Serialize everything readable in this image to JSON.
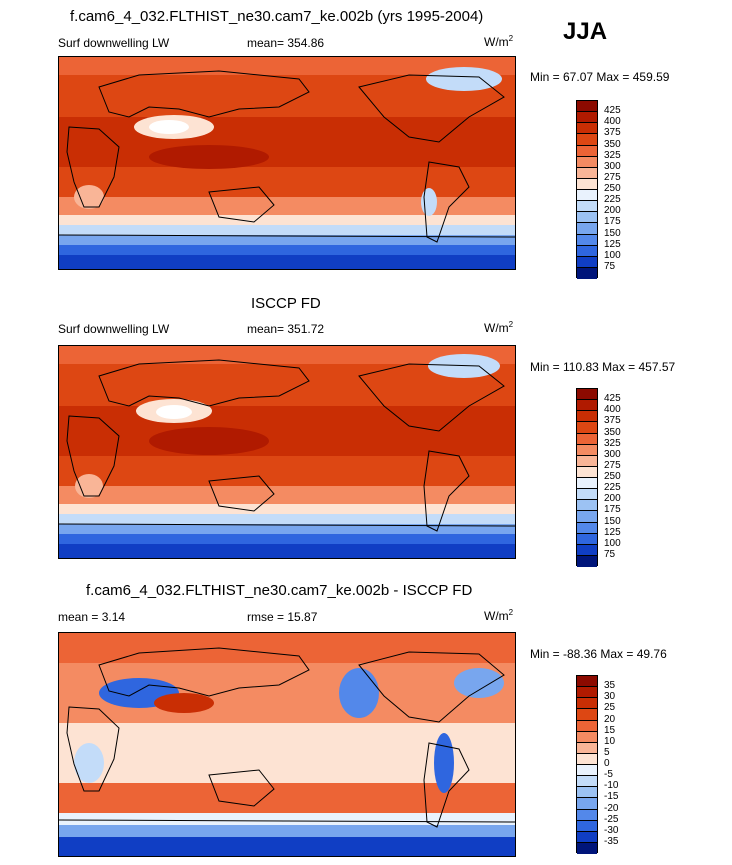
{
  "season": "JJA",
  "units_base": "W/m",
  "units_exp": "2",
  "panels": [
    {
      "title": "f.cam6_4_032.FLTHIST_ne30.cam7_ke.002b (yrs 1995-2004)",
      "variable": "Surf downwelling LW",
      "mean": "mean= 354.86",
      "minmax": "Min =  67.07 Max = 459.59"
    },
    {
      "title": "ISCCP FD",
      "variable": "Surf downwelling LW",
      "mean": "mean= 351.72",
      "minmax": "Min = 110.83 Max = 457.57"
    },
    {
      "title": "f.cam6_4_032.FLTHIST_ne30.cam7_ke.002b - ISCCP FD",
      "mean_left": "mean =   3.14",
      "rmse": "rmse =  15.87",
      "minmax": "Min = -88.36 Max =  49.76"
    }
  ],
  "colorbars": {
    "absolute": {
      "labels": [
        "425",
        "400",
        "375",
        "350",
        "325",
        "300",
        "275",
        "250",
        "225",
        "200",
        "175",
        "150",
        "125",
        "100",
        "75"
      ],
      "colors": [
        "#8c0a00",
        "#b01a00",
        "#c92e04",
        "#dd4713",
        "#ec6436",
        "#f48b62",
        "#f9b597",
        "#fde3d3",
        "#e9f2fd",
        "#c3dcf9",
        "#9cc2f3",
        "#78a6ee",
        "#5388ea",
        "#2f66df",
        "#103ec4",
        "#00157a"
      ]
    },
    "difference": {
      "labels": [
        "35",
        "30",
        "25",
        "20",
        "15",
        "10",
        "5",
        "0",
        "-5",
        "-10",
        "-15",
        "-20",
        "-25",
        "-30",
        "-35"
      ],
      "colors": [
        "#8c0a00",
        "#b01a00",
        "#c92e04",
        "#dd4713",
        "#ec6436",
        "#f48b62",
        "#f9b597",
        "#fde3d3",
        "#e9f2fd",
        "#c3dcf9",
        "#9cc2f3",
        "#78a6ee",
        "#5388ea",
        "#2f66df",
        "#103ec4",
        "#00157a"
      ]
    }
  }
}
